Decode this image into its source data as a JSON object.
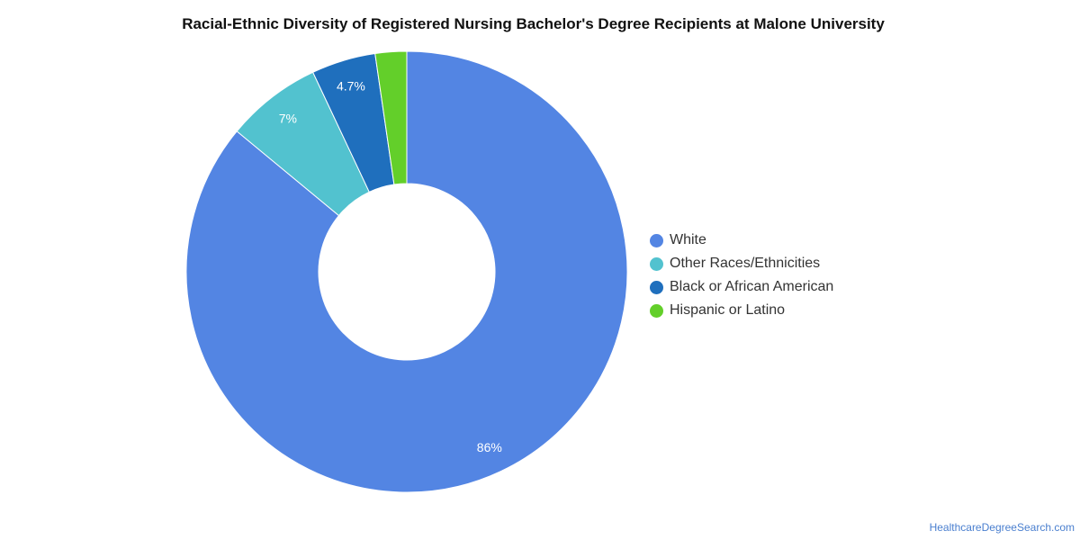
{
  "chart_data": {
    "type": "pie",
    "title": "Racial-Ethnic Diversity of Registered Nursing Bachelor's Degree Recipients at Malone University",
    "donut": true,
    "legend_position": "right",
    "slices": [
      {
        "label": "White",
        "value": 86,
        "display": "86%",
        "color": "#5385e3"
      },
      {
        "label": "Other Races/Ethnicities",
        "value": 7,
        "display": "7%",
        "color": "#52c2cf"
      },
      {
        "label": "Black or African American",
        "value": 4.7,
        "display": "4.7%",
        "color": "#1f6fbd"
      },
      {
        "label": "Hispanic or Latino",
        "value": 2.3,
        "display": "",
        "color": "#63cf2a"
      }
    ]
  },
  "footer": {
    "credit": "HealthcareDegreeSearch.com"
  }
}
